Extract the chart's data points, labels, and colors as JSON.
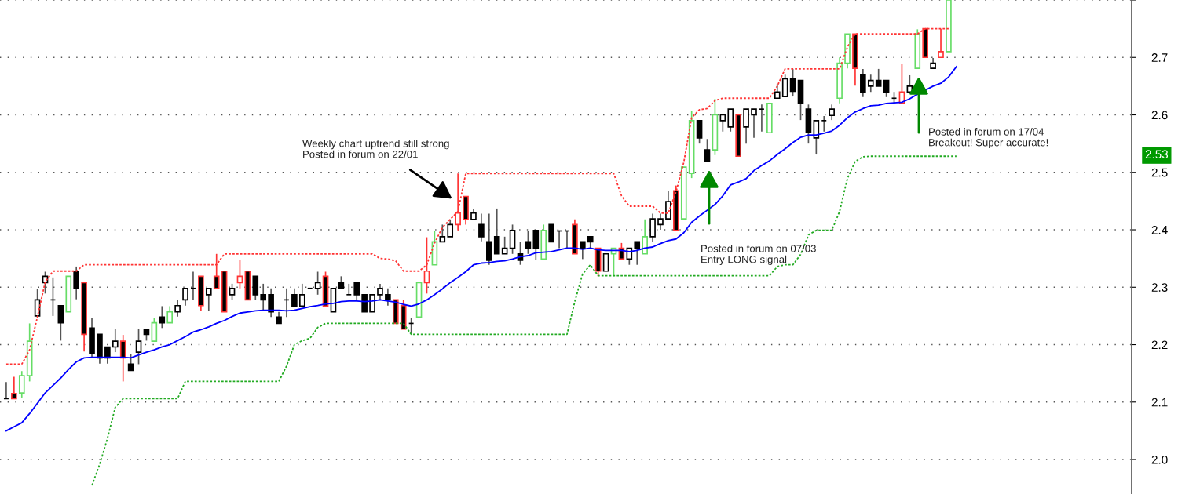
{
  "chart_data": {
    "type": "candlestick",
    "categories": [
      null,
      null,
      null,
      null,
      null,
      null,
      null,
      null,
      null,
      null,
      null,
      null,
      null,
      null,
      null,
      null,
      null,
      null,
      null,
      null,
      null,
      null,
      null,
      null,
      null,
      null,
      null,
      null,
      null,
      null,
      null,
      null,
      null,
      null,
      null,
      null,
      null,
      null,
      null,
      null,
      null,
      null,
      null,
      null,
      null,
      null,
      null,
      null,
      null,
      null,
      null,
      null,
      null,
      null,
      null,
      null,
      null,
      null,
      null,
      null,
      null,
      null,
      null,
      null,
      null,
      null,
      null,
      null,
      null,
      null,
      null,
      null,
      null,
      null,
      null,
      null,
      null,
      null,
      null,
      null,
      null,
      null,
      null,
      null,
      null,
      null,
      null,
      null,
      null,
      null,
      null,
      null,
      null,
      null,
      null,
      null,
      null,
      null,
      null,
      null,
      null,
      null,
      null,
      null,
      null,
      null,
      null,
      null,
      null,
      null,
      null,
      null,
      null,
      null,
      null,
      null,
      null,
      null,
      null,
      null,
      null,
      null,
      null,
      null,
      null,
      null,
      null,
      null,
      null,
      null,
      null,
      null,
      null,
      null,
      null,
      null,
      null,
      null,
      null,
      null,
      null,
      null,
      null,
      null,
      null
    ],
    "ohlc": [
      [
        2.106,
        2.135,
        2.106,
        2.106
      ],
      [
        2.115,
        2.144,
        2.106,
        2.106
      ],
      [
        2.116,
        2.154,
        2.108,
        2.146
      ],
      [
        2.146,
        2.237,
        2.136,
        2.206
      ],
      [
        2.25,
        2.297,
        2.25,
        2.278
      ],
      [
        2.308,
        2.327,
        2.289,
        2.319
      ],
      [
        2.278,
        2.317,
        2.25,
        2.278
      ],
      [
        2.268,
        2.268,
        2.207,
        2.238
      ],
      [
        2.257,
        2.319,
        2.257,
        2.319
      ],
      [
        2.328,
        2.336,
        2.279,
        2.298
      ],
      [
        2.308,
        2.308,
        2.188,
        2.218
      ],
      [
        2.229,
        2.247,
        2.177,
        2.185
      ],
      [
        2.218,
        2.218,
        2.167,
        2.177
      ],
      [
        2.196,
        2.196,
        2.167,
        2.177
      ],
      [
        2.196,
        2.227,
        2.187,
        2.206
      ],
      [
        2.206,
        2.217,
        2.136,
        2.177
      ],
      [
        2.166,
        2.184,
        2.155,
        2.155
      ],
      [
        2.187,
        2.227,
        2.166,
        2.206
      ],
      [
        2.227,
        2.227,
        2.207,
        2.218
      ],
      [
        2.206,
        2.247,
        2.206,
        2.238
      ],
      [
        2.248,
        2.267,
        2.229,
        2.238
      ],
      [
        2.238,
        2.267,
        2.238,
        2.257
      ],
      [
        2.257,
        2.278,
        2.249,
        2.268
      ],
      [
        2.278,
        2.298,
        2.268,
        2.298
      ],
      [
        2.298,
        2.327,
        2.278,
        2.298
      ],
      [
        2.319,
        2.319,
        2.259,
        2.268
      ],
      [
        2.287,
        2.298,
        2.259,
        2.298
      ],
      [
        2.319,
        2.358,
        2.298,
        2.298
      ],
      [
        2.328,
        2.328,
        2.257,
        2.257
      ],
      [
        2.287,
        2.306,
        2.278,
        2.298
      ],
      [
        2.308,
        2.347,
        2.298,
        2.319
      ],
      [
        2.328,
        2.328,
        2.278,
        2.278
      ],
      [
        2.319,
        2.319,
        2.278,
        2.287
      ],
      [
        2.287,
        2.306,
        2.259,
        2.278
      ],
      [
        2.287,
        2.298,
        2.248,
        2.257
      ],
      [
        2.248,
        2.257,
        2.237,
        2.237
      ],
      [
        2.278,
        2.298,
        2.248,
        2.278
      ],
      [
        2.287,
        2.298,
        2.267,
        2.267
      ],
      [
        2.267,
        2.306,
        2.267,
        2.287
      ],
      [
        2.298,
        2.298,
        2.298,
        2.298
      ],
      [
        2.298,
        2.327,
        2.287,
        2.308
      ],
      [
        2.319,
        2.327,
        2.267,
        2.267
      ],
      [
        2.257,
        2.298,
        2.257,
        2.298
      ],
      [
        2.308,
        2.319,
        2.298,
        2.298
      ],
      [
        2.287,
        2.306,
        2.287,
        2.287
      ],
      [
        2.308,
        2.308,
        2.278,
        2.287
      ],
      [
        2.287,
        2.287,
        2.257,
        2.257
      ],
      [
        2.257,
        2.287,
        2.257,
        2.287
      ],
      [
        2.287,
        2.306,
        2.278,
        2.298
      ],
      [
        2.287,
        2.298,
        2.268,
        2.278
      ],
      [
        2.278,
        2.278,
        2.237,
        2.237
      ],
      [
        2.268,
        2.278,
        2.227,
        2.227
      ],
      [
        2.237,
        2.247,
        2.218,
        2.237
      ],
      [
        2.248,
        2.308,
        2.248,
        2.308
      ],
      [
        2.308,
        2.387,
        2.289,
        2.328
      ],
      [
        2.339,
        2.398,
        2.339,
        2.379
      ],
      [
        2.379,
        2.409,
        2.379,
        2.388
      ],
      [
        2.388,
        2.418,
        2.388,
        2.409
      ],
      [
        2.409,
        2.498,
        2.399,
        2.429
      ],
      [
        2.458,
        2.458,
        2.409,
        2.418
      ],
      [
        2.418,
        2.437,
        2.418,
        2.429
      ],
      [
        2.409,
        2.428,
        2.38,
        2.388
      ],
      [
        2.379,
        2.428,
        2.339,
        2.347
      ],
      [
        2.388,
        2.437,
        2.358,
        2.358
      ],
      [
        2.358,
        2.388,
        2.358,
        2.368
      ],
      [
        2.368,
        2.409,
        2.358,
        2.399
      ],
      [
        2.358,
        2.379,
        2.339,
        2.347
      ],
      [
        2.379,
        2.398,
        2.358,
        2.368
      ],
      [
        2.399,
        2.399,
        2.347,
        2.368
      ],
      [
        2.349,
        2.409,
        2.349,
        2.399
      ],
      [
        2.409,
        2.409,
        2.379,
        2.379
      ],
      [
        2.398,
        2.398,
        2.368,
        2.398
      ],
      [
        2.398,
        2.398,
        2.368,
        2.398
      ],
      [
        2.409,
        2.418,
        2.358,
        2.358
      ],
      [
        2.379,
        2.379,
        2.349,
        2.368
      ],
      [
        2.388,
        2.388,
        2.368,
        2.379
      ],
      [
        2.368,
        2.368,
        2.319,
        2.328
      ],
      [
        2.328,
        2.358,
        2.328,
        2.358
      ],
      [
        2.358,
        2.368,
        2.319,
        2.368
      ],
      [
        2.368,
        2.377,
        2.349,
        2.349
      ],
      [
        2.349,
        2.368,
        2.339,
        2.368
      ],
      [
        2.379,
        2.379,
        2.339,
        2.368
      ],
      [
        2.358,
        2.418,
        2.358,
        2.388
      ],
      [
        2.388,
        2.428,
        2.379,
        2.419
      ],
      [
        2.409,
        2.428,
        2.4,
        2.419
      ],
      [
        2.419,
        2.467,
        2.419,
        2.449
      ],
      [
        2.468,
        2.477,
        2.399,
        2.399
      ],
      [
        2.419,
        2.509,
        2.419,
        2.509
      ],
      [
        2.498,
        2.607,
        2.49,
        2.59
      ],
      [
        2.59,
        2.59,
        2.55,
        2.56
      ],
      [
        2.539,
        2.558,
        2.519,
        2.519
      ],
      [
        2.539,
        2.628,
        2.53,
        2.6
      ],
      [
        2.59,
        2.6,
        2.571,
        2.6
      ],
      [
        2.579,
        2.61,
        2.571,
        2.61
      ],
      [
        2.6,
        2.6,
        2.528,
        2.528
      ],
      [
        2.579,
        2.61,
        2.55,
        2.61
      ],
      [
        2.6,
        2.61,
        2.56,
        2.61
      ],
      [
        2.61,
        2.618,
        2.571,
        2.61
      ],
      [
        2.569,
        2.62,
        2.569,
        2.62
      ],
      [
        2.629,
        2.654,
        2.629,
        2.64
      ],
      [
        2.632,
        2.67,
        2.632,
        2.663
      ],
      [
        2.663,
        2.68,
        2.632,
        2.641
      ],
      [
        2.66,
        2.66,
        2.591,
        2.62
      ],
      [
        2.61,
        2.618,
        2.55,
        2.569
      ],
      [
        2.56,
        2.59,
        2.531,
        2.59
      ],
      [
        2.59,
        2.598,
        2.571,
        2.59
      ],
      [
        2.599,
        2.618,
        2.591,
        2.61
      ],
      [
        2.629,
        2.7,
        2.62,
        2.69
      ],
      [
        2.69,
        2.741,
        2.681,
        2.741
      ],
      [
        2.741,
        2.741,
        2.651,
        2.681
      ],
      [
        2.67,
        2.68,
        2.631,
        2.64
      ],
      [
        2.65,
        2.67,
        2.64,
        2.66
      ],
      [
        2.66,
        2.68,
        2.65,
        2.65
      ],
      [
        2.66,
        2.66,
        2.631,
        2.64
      ],
      [
        2.629,
        2.64,
        2.62,
        2.629
      ],
      [
        2.62,
        2.689,
        2.62,
        2.64
      ],
      [
        2.64,
        2.669,
        2.64,
        2.65
      ],
      [
        2.681,
        2.749,
        2.681,
        2.741
      ],
      [
        2.75,
        2.75,
        2.7,
        2.7
      ],
      [
        2.681,
        2.699,
        2.681,
        2.69
      ],
      [
        2.7,
        2.75,
        2.7,
        2.71
      ],
      [
        2.71,
        2.8,
        2.71,
        2.8
      ],
      null,
      null,
      null,
      null,
      null,
      null,
      null,
      null,
      null,
      null,
      null,
      null,
      null,
      null,
      null,
      null,
      null,
      null,
      null,
      null,
      null,
      null,
      null
    ],
    "colors": [
      "#000000",
      "#ff3333",
      "#66dd66",
      "#66dd66",
      "#000000",
      "#000000",
      "#000000",
      "#000000",
      "#66dd66",
      "#000000",
      "#ff3333",
      "#000000",
      "#000000",
      "#000000",
      "#000000",
      "#ff3333",
      "#000000",
      "#000000",
      "#000000",
      "#66dd66",
      "#000000",
      "#66dd66",
      "#000000",
      "#000000",
      "#000000",
      "#ff3333",
      "#000000",
      "#ff3333",
      "#ff3333",
      "#000000",
      "#ff3333",
      "#ff3333",
      "#000000",
      "#000000",
      "#000000",
      "#000000",
      "#000000",
      "#000000",
      "#000000",
      "#000000",
      "#000000",
      "#ff3333",
      "#000000",
      "#000000",
      "#000000",
      "#000000",
      "#000000",
      "#000000",
      "#000000",
      "#000000",
      "#ff3333",
      "#ff3333",
      "#000000",
      "#66dd66",
      "#ff3333",
      "#66dd66",
      "#000000",
      "#000000",
      "#ff3333",
      "#ff3333",
      "#000000",
      "#000000",
      "#000000",
      "#000000",
      "#000000",
      "#000000",
      "#000000",
      "#000000",
      "#000000",
      "#66dd66",
      "#000000",
      "#000000",
      "#000000",
      "#ff3333",
      "#000000",
      "#000000",
      "#ff3333",
      "#000000",
      "#66dd66",
      "#ff3333",
      "#000000",
      "#000000",
      "#66dd66",
      "#000000",
      "#000000",
      "#000000",
      "#ff3333",
      "#66dd66",
      "#66dd66",
      "#000000",
      "#000000",
      "#66dd66",
      "#000000",
      "#000000",
      "#ff3333",
      "#000000",
      "#000000",
      "#000000",
      "#66dd66",
      "#000000",
      "#000000",
      "#000000",
      "#000000",
      "#000000",
      "#000000",
      "#000000",
      "#000000",
      "#66dd66",
      "#66dd66",
      "#ff3333",
      "#000000",
      "#000000",
      "#000000",
      "#000000",
      "#000000",
      "#ff3333",
      "#000000",
      "#66dd66",
      "#ff3333",
      "#000000",
      "#ff3333",
      "#66dd66",
      null,
      null,
      null,
      null,
      null,
      null,
      null,
      null,
      null,
      null,
      null,
      null,
      null,
      null,
      null,
      null,
      null,
      null,
      null,
      null,
      null,
      null,
      null
    ],
    "series": [
      {
        "type": "line",
        "color": "#0000ff",
        "line_style": "solid",
        "values": [
          2.05,
          2.057,
          2.064,
          2.08,
          2.098,
          2.116,
          2.129,
          2.142,
          2.157,
          2.17,
          2.177,
          2.178,
          2.178,
          2.178,
          2.178,
          2.178,
          2.177,
          2.182,
          2.187,
          2.191,
          2.196,
          2.2,
          2.207,
          2.214,
          2.222,
          2.226,
          2.231,
          2.237,
          2.242,
          2.249,
          2.255,
          2.257,
          2.259,
          2.26,
          2.26,
          2.26,
          2.259,
          2.26,
          2.263,
          2.266,
          2.268,
          2.271,
          2.272,
          2.275,
          2.276,
          2.276,
          2.275,
          2.276,
          2.278,
          2.276,
          2.274,
          2.27,
          2.267,
          2.271,
          2.278,
          2.287,
          2.297,
          2.308,
          2.317,
          2.327,
          2.339,
          2.342,
          2.343,
          2.345,
          2.346,
          2.349,
          2.353,
          2.355,
          2.36,
          2.361,
          2.362,
          2.365,
          2.368,
          2.368,
          2.366,
          2.368,
          2.365,
          2.364,
          2.364,
          2.364,
          2.362,
          2.364,
          2.368,
          2.37,
          2.376,
          2.381,
          2.384,
          2.395,
          2.413,
          2.424,
          2.434,
          2.444,
          2.459,
          2.478,
          2.483,
          2.489,
          2.503,
          2.512,
          2.52,
          2.531,
          2.541,
          2.552,
          2.561,
          2.565,
          2.565,
          2.568,
          2.572,
          2.582,
          2.595,
          2.605,
          2.611,
          2.616,
          2.617,
          2.62,
          2.621,
          2.622,
          2.628,
          2.636,
          2.643,
          2.65,
          2.655,
          2.666,
          2.684,
          null,
          null,
          null,
          null,
          null,
          null,
          null,
          null,
          null,
          null,
          null,
          null,
          null,
          null,
          null,
          null,
          null,
          null,
          null,
          null,
          null,
          null
        ]
      },
      {
        "type": "line",
        "color": "#ff3333",
        "line_style": "dotted",
        "values": [
          2.166,
          2.166,
          2.166,
          2.191,
          2.248,
          2.309,
          2.328,
          2.328,
          2.328,
          2.328,
          2.339,
          2.339,
          2.339,
          2.339,
          2.339,
          2.339,
          2.339,
          2.339,
          2.339,
          2.339,
          2.339,
          2.339,
          2.339,
          2.339,
          2.339,
          2.339,
          2.339,
          2.339,
          2.358,
          2.358,
          2.358,
          2.358,
          2.358,
          2.358,
          2.358,
          2.358,
          2.358,
          2.358,
          2.358,
          2.358,
          2.358,
          2.358,
          2.358,
          2.358,
          2.358,
          2.358,
          2.358,
          2.358,
          2.35,
          2.349,
          2.346,
          2.328,
          2.328,
          2.328,
          2.339,
          2.377,
          2.404,
          2.418,
          2.432,
          2.498,
          2.498,
          2.498,
          2.498,
          2.498,
          2.498,
          2.498,
          2.498,
          2.498,
          2.498,
          2.498,
          2.498,
          2.498,
          2.498,
          2.498,
          2.498,
          2.498,
          2.498,
          2.498,
          2.498,
          2.459,
          2.441,
          2.441,
          2.441,
          2.441,
          2.429,
          2.429,
          2.466,
          2.518,
          2.595,
          2.609,
          2.611,
          2.625,
          2.629,
          2.629,
          2.629,
          2.629,
          2.629,
          2.629,
          2.629,
          2.65,
          2.68,
          2.68,
          2.68,
          2.68,
          2.68,
          2.68,
          2.68,
          2.68,
          2.718,
          2.741,
          2.741,
          2.741,
          2.741,
          2.741,
          2.741,
          2.741,
          2.741,
          2.741,
          2.75,
          2.75,
          2.75,
          2.75,
          null,
          null,
          null,
          null,
          null,
          null,
          null,
          null,
          null,
          null,
          null,
          null,
          null,
          null,
          null,
          null,
          null,
          null,
          null,
          null,
          null,
          null,
          null
        ]
      },
      {
        "type": "line",
        "color": "#22aa22",
        "line_style": "dotted",
        "values": [
          null,
          null,
          null,
          null,
          null,
          null,
          null,
          null,
          null,
          null,
          null,
          1.955,
          1.992,
          2.037,
          2.091,
          2.106,
          2.106,
          2.106,
          2.106,
          2.106,
          2.106,
          2.106,
          2.106,
          2.136,
          2.136,
          2.136,
          2.136,
          2.136,
          2.136,
          2.136,
          2.136,
          2.136,
          2.136,
          2.136,
          2.136,
          2.136,
          2.163,
          2.2,
          2.207,
          2.211,
          2.23,
          2.237,
          2.237,
          2.237,
          2.237,
          2.237,
          2.237,
          2.237,
          2.237,
          2.237,
          2.237,
          2.237,
          2.218,
          2.218,
          2.218,
          2.218,
          2.218,
          2.218,
          2.218,
          2.218,
          2.218,
          2.218,
          2.218,
          2.218,
          2.218,
          2.218,
          2.218,
          2.218,
          2.218,
          2.218,
          2.218,
          2.218,
          2.218,
          2.275,
          2.323,
          2.339,
          2.32,
          2.32,
          2.32,
          2.32,
          2.32,
          2.32,
          2.32,
          2.32,
          2.32,
          2.32,
          2.32,
          2.32,
          2.32,
          2.32,
          2.32,
          2.32,
          2.32,
          2.32,
          2.32,
          2.32,
          2.32,
          2.32,
          2.32,
          2.336,
          2.339,
          2.339,
          2.357,
          2.391,
          2.399,
          2.399,
          2.399,
          2.432,
          2.489,
          2.519,
          2.527,
          2.528,
          2.528,
          2.528,
          2.528,
          2.528,
          2.528,
          2.528,
          2.528,
          2.528,
          2.528,
          2.528,
          2.528,
          null,
          null,
          null,
          null,
          null,
          null,
          null,
          null,
          null,
          null,
          null,
          null,
          null,
          null,
          null,
          null,
          null,
          null,
          null,
          null,
          null,
          null
        ]
      }
    ],
    "ylim": [
      1.94,
      2.8
    ],
    "yticks": [
      {
        "value": 2,
        "label": "2.0"
      },
      2.1,
      2.2,
      2.3,
      2.4,
      2.5,
      2.6,
      2.7,
      {
        "value": 2.8,
        "label": null
      }
    ],
    "grid": "y",
    "tick_labels": "y",
    "annotations": [
      "Weekly chart uptrend still strong\nPosted in forum on 22/01",
      "Posted in forum on 07/03\nEntry LONG signal",
      "Posted in forum on 17/04\nBreakout! Super accurate!",
      "2.53"
    ]
  }
}
